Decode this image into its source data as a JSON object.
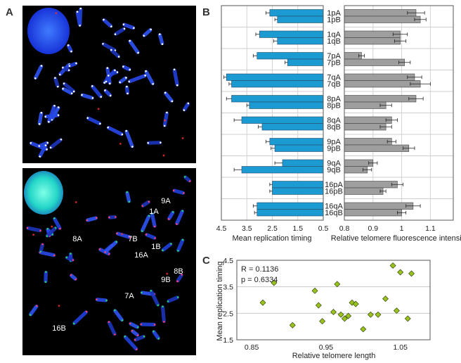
{
  "panels": {
    "a": "A",
    "b": "B",
    "c": "C"
  },
  "micrograph_labels": [
    "9A",
    "1A",
    "8A",
    "7B",
    "1B",
    "16A",
    "8B",
    "9B",
    "7A",
    "16B"
  ],
  "chart_data": [
    {
      "type": "bar",
      "orientation": "horizontal",
      "direction": "reversed-x",
      "categories": [
        "1pA",
        "1pB",
        "1qA",
        "1qB",
        "7pA",
        "7pB",
        "7qA",
        "7qB",
        "8pA",
        "8pB",
        "8qA",
        "8qB",
        "9pA",
        "9pB",
        "9qA",
        "9qB",
        "16pA",
        "16pB",
        "16qA",
        "16qB"
      ],
      "series": [
        {
          "values": [
            2.6,
            2.3,
            3.0,
            2.3,
            3.1,
            1.9,
            4.3,
            4.1,
            4.1,
            3.4,
            3.7,
            2.9,
            2.6,
            2.4,
            2.1,
            3.7,
            2.5,
            2.5,
            3.1,
            3.1
          ]
        }
      ],
      "errors": [
        0.15,
        0.1,
        0.15,
        0.15,
        0.15,
        0.1,
        0.1,
        0.1,
        0.2,
        0.1,
        0.3,
        0.15,
        0.15,
        0.15,
        0.3,
        0.3,
        0.1,
        0.1,
        0.15,
        0.1
      ],
      "xlabel": "Mean replication timing",
      "ticks": [
        "4.5",
        "3.5",
        "2.5",
        "1.5",
        "0.5"
      ],
      "xlim": [
        4.5,
        0.5
      ],
      "color": "#1b9bd1",
      "grid": true
    },
    {
      "type": "bar",
      "orientation": "horizontal",
      "categories": [
        "1pA",
        "1pB",
        "1qA",
        "1qB",
        "7pA",
        "7pB",
        "7qA",
        "7qB",
        "8pA",
        "8pB",
        "8qA",
        "8qB",
        "9pA",
        "9pB",
        "9qA",
        "9qB",
        "16pA",
        "16pB",
        "16qA",
        "16qB"
      ],
      "series": [
        {
          "values": [
            1.05,
            1.065,
            0.995,
            0.995,
            0.86,
            1.01,
            1.045,
            1.065,
            1.05,
            0.945,
            0.965,
            0.945,
            0.965,
            1.025,
            0.9,
            0.88,
            0.985,
            0.935,
            1.04,
            1.0
          ]
        }
      ],
      "errors": [
        0.03,
        0.02,
        0.025,
        0.02,
        0.01,
        0.02,
        0.025,
        0.035,
        0.025,
        0.02,
        0.02,
        0.02,
        0.015,
        0.02,
        0.015,
        0.015,
        0.02,
        0.01,
        0.025,
        0.015
      ],
      "xlabel": "Relative telomere fluorescence intensity",
      "ticks": [
        "0.8",
        "0.9",
        "1",
        "1.1"
      ],
      "xlim": [
        0.8,
        1.18
      ],
      "color": "#9e9e9e",
      "grid": true
    },
    {
      "type": "scatter",
      "x": [
        0.865,
        0.88,
        0.905,
        0.935,
        0.94,
        0.945,
        0.96,
        0.965,
        0.97,
        0.975,
        0.98,
        0.985,
        0.99,
        1.0,
        1.01,
        1.02,
        1.03,
        1.04,
        1.045,
        1.05,
        1.06,
        1.065
      ],
      "y": [
        2.9,
        3.65,
        2.05,
        3.35,
        2.8,
        2.2,
        2.55,
        3.6,
        2.45,
        2.3,
        2.4,
        2.9,
        2.85,
        1.9,
        2.45,
        2.45,
        3.05,
        4.3,
        2.6,
        4.05,
        2.3,
        4.0
      ],
      "xlabel": "Relative telomere length",
      "ylabel": "Mean replication timing",
      "xticks": [
        "0.85",
        "0.95",
        "1.05"
      ],
      "yticks": [
        "1.5",
        "2.5",
        "3.5",
        "4.5"
      ],
      "xlim": [
        0.83,
        1.09
      ],
      "ylim": [
        1.5,
        4.5
      ],
      "annotations": [
        "R = 0.1136",
        "p = 0.6334"
      ],
      "marker_color": "#99c21f",
      "grid": true
    }
  ]
}
